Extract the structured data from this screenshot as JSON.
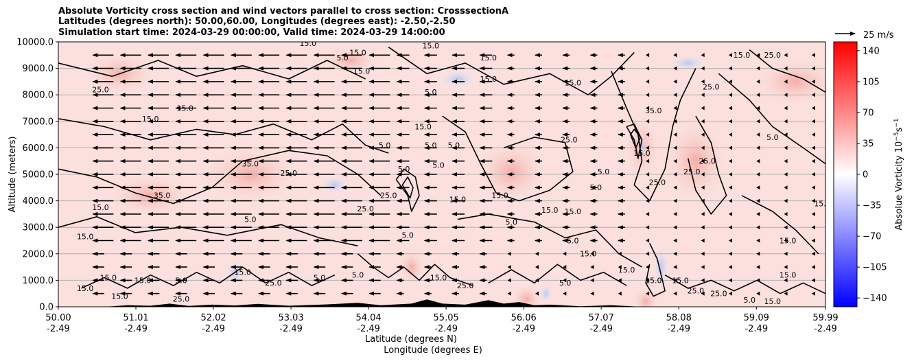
{
  "title_lines": [
    "Absolute Vorticity cross section and wind vectors parallel to cross section: CrosssectionA",
    "Latitudes (degrees north): 50.00,60.00, Longitudes (degrees east): -2.50,-2.50",
    "Simulation start time: 2024-03-29 00:00:00, Valid time: 2024-03-29 14:00:00"
  ],
  "chart_data": {
    "type": "heatmap",
    "ylabel": "Altitude (meters)",
    "xlabel_lines": [
      "Latitude (degrees N)",
      "Longitude (degrees E)"
    ],
    "ylim": [
      0,
      10000
    ],
    "xlim": [
      50.0,
      59.99
    ],
    "y_ticks": [
      "0.0",
      "1000.0",
      "2000.0",
      "3000.0",
      "4000.0",
      "5000.0",
      "6000.0",
      "7000.0",
      "8000.0",
      "9000.0",
      "10000.0"
    ],
    "y_tick_values": [
      0,
      1000,
      2000,
      3000,
      4000,
      5000,
      6000,
      7000,
      8000,
      9000,
      10000
    ],
    "x_ticks": [
      {
        "lat": "50.00",
        "lon": "-2.49",
        "value": 50.0
      },
      {
        "lat": "51.01",
        "lon": "-2.49",
        "value": 51.01
      },
      {
        "lat": "52.02",
        "lon": "-2.49",
        "value": 52.02
      },
      {
        "lat": "53.03",
        "lon": "-2.49",
        "value": 53.03
      },
      {
        "lat": "54.04",
        "lon": "-2.49",
        "value": 54.04
      },
      {
        "lat": "55.05",
        "lon": "-2.49",
        "value": 55.05
      },
      {
        "lat": "56.06",
        "lon": "-2.49",
        "value": 56.06
      },
      {
        "lat": "57.07",
        "lon": "-2.49",
        "value": 57.07
      },
      {
        "lat": "58.08",
        "lon": "-2.49",
        "value": 58.08
      },
      {
        "lat": "59.09",
        "lon": "-2.49",
        "value": 59.09
      },
      {
        "lat": "59.99",
        "lon": "-2.49",
        "value": 59.99
      }
    ],
    "grid": "horizontal",
    "colorbar": {
      "label": "Absolue Vorticity 10",
      "label_exponent": "−5",
      "label_unit": "s",
      "label_unit_exponent": "−1",
      "ticks": [
        "140",
        "105",
        "70",
        "35",
        "0",
        "−35",
        "−70",
        "−105",
        "−140"
      ],
      "tick_values": [
        140,
        105,
        70,
        35,
        0,
        -35,
        -70,
        -105,
        -140
      ],
      "range": [
        -150,
        150
      ],
      "colors": {
        "min": "#0000ff",
        "mid": "#ffffff",
        "max": "#ff0000"
      }
    },
    "quiver_key": {
      "label": "25 m/s",
      "value": 25
    },
    "contour_levels": [
      "5.0",
      "15.0",
      "25.0",
      "35.0"
    ],
    "contour_labels": [
      {
        "t": "15.0",
        "x": 50.55,
        "y": 3650
      },
      {
        "t": "15.0",
        "x": 50.35,
        "y": 2550
      },
      {
        "t": "25.0",
        "x": 50.55,
        "y": 8100
      },
      {
        "t": "15.0",
        "x": 51.2,
        "y": 7000
      },
      {
        "t": "15.0",
        "x": 51.65,
        "y": 7400
      },
      {
        "t": "35.0",
        "x": 51.35,
        "y": 4100
      },
      {
        "t": "35.0",
        "x": 52.5,
        "y": 5300
      },
      {
        "t": "25.0",
        "x": 53.0,
        "y": 4950
      },
      {
        "t": "15.0",
        "x": 53.25,
        "y": 9850
      },
      {
        "t": "5.0",
        "x": 52.5,
        "y": 3200
      },
      {
        "t": "5.0",
        "x": 53.7,
        "y": 9300
      },
      {
        "t": "15.0",
        "x": 53.9,
        "y": 9500
      },
      {
        "t": "15.0",
        "x": 53.95,
        "y": 8800
      },
      {
        "t": "5.0",
        "x": 54.25,
        "y": 6000
      },
      {
        "t": "25.0",
        "x": 54.0,
        "y": 3600
      },
      {
        "t": "25.0",
        "x": 54.3,
        "y": 4100
      },
      {
        "t": "5.0",
        "x": 54.5,
        "y": 5100
      },
      {
        "t": "5.0",
        "x": 54.55,
        "y": 2600
      },
      {
        "t": "5.0",
        "x": 54.85,
        "y": 6000
      },
      {
        "t": "5.0",
        "x": 54.95,
        "y": 5250
      },
      {
        "t": "5.0",
        "x": 55.15,
        "y": 6000
      },
      {
        "t": "5.0",
        "x": 54.85,
        "y": 8000
      },
      {
        "t": "15.0",
        "x": 54.75,
        "y": 6700
      },
      {
        "t": "15.0",
        "x": 54.85,
        "y": 9750
      },
      {
        "t": "15.0",
        "x": 55.2,
        "y": 3950
      },
      {
        "t": "15.0",
        "x": 55.6,
        "y": 9300
      },
      {
        "t": "15.0",
        "x": 55.6,
        "y": 8500
      },
      {
        "t": "15.0",
        "x": 55.75,
        "y": 4100
      },
      {
        "t": "5.0",
        "x": 55.9,
        "y": 3100
      },
      {
        "t": "15.0",
        "x": 56.4,
        "y": 3550
      },
      {
        "t": "15.0",
        "x": 56.7,
        "y": 3500
      },
      {
        "t": "15.0",
        "x": 56.7,
        "y": 8350
      },
      {
        "t": "25.0",
        "x": 56.65,
        "y": 6200
      },
      {
        "t": "5.0",
        "x": 57.0,
        "y": 4400
      },
      {
        "t": "5.0",
        "x": 56.7,
        "y": 2400
      },
      {
        "t": "5.0",
        "x": 57.1,
        "y": 5000
      },
      {
        "t": "15.0",
        "x": 56.9,
        "y": 1900
      },
      {
        "t": "15.0",
        "x": 57.6,
        "y": 5700
      },
      {
        "t": "35.0",
        "x": 57.75,
        "y": 7300
      },
      {
        "t": "25.0",
        "x": 57.8,
        "y": 4600
      },
      {
        "t": "15.0",
        "x": 57.75,
        "y": 900
      },
      {
        "t": "15.0",
        "x": 58.1,
        "y": 900
      },
      {
        "t": "25.0",
        "x": 58.25,
        "y": 5000
      },
      {
        "t": "25.0",
        "x": 58.45,
        "y": 5400
      },
      {
        "t": "25.0",
        "x": 58.5,
        "y": 8200
      },
      {
        "t": "15.0",
        "x": 58.9,
        "y": 9400
      },
      {
        "t": "25.0",
        "x": 59.3,
        "y": 9400
      },
      {
        "t": "5.0",
        "x": 59.3,
        "y": 6300
      },
      {
        "t": "15.0",
        "x": 59.95,
        "y": 3800
      },
      {
        "t": "15.0",
        "x": 59.5,
        "y": 2400
      },
      {
        "t": "15.0",
        "x": 59.5,
        "y": 1100
      },
      {
        "t": "25.0",
        "x": 58.6,
        "y": 400
      },
      {
        "t": "5.0",
        "x": 59.0,
        "y": 150
      },
      {
        "t": "25.0",
        "x": 58.3,
        "y": 500
      },
      {
        "t": "15.0",
        "x": 59.3,
        "y": 100
      },
      {
        "t": "5.0",
        "x": 56.6,
        "y": 800
      },
      {
        "t": "15.0",
        "x": 57.4,
        "y": 1300
      },
      {
        "t": "25.0",
        "x": 55.3,
        "y": 700
      },
      {
        "t": "15.0",
        "x": 54.95,
        "y": 1000
      },
      {
        "t": "5.0",
        "x": 53.4,
        "y": 1000
      },
      {
        "t": "25.0",
        "x": 52.8,
        "y": 800
      },
      {
        "t": "15.0",
        "x": 52.4,
        "y": 1200
      },
      {
        "t": "5.0",
        "x": 53.9,
        "y": 1100
      },
      {
        "t": "15.0",
        "x": 51.1,
        "y": 900
      },
      {
        "t": "15.0",
        "x": 50.65,
        "y": 1000
      },
      {
        "t": "15.0",
        "x": 50.35,
        "y": 600
      },
      {
        "t": "15.0",
        "x": 50.8,
        "y": 300
      },
      {
        "t": "5.0",
        "x": 51.6,
        "y": 900
      },
      {
        "t": "25.0",
        "x": 51.6,
        "y": 200
      }
    ]
  }
}
